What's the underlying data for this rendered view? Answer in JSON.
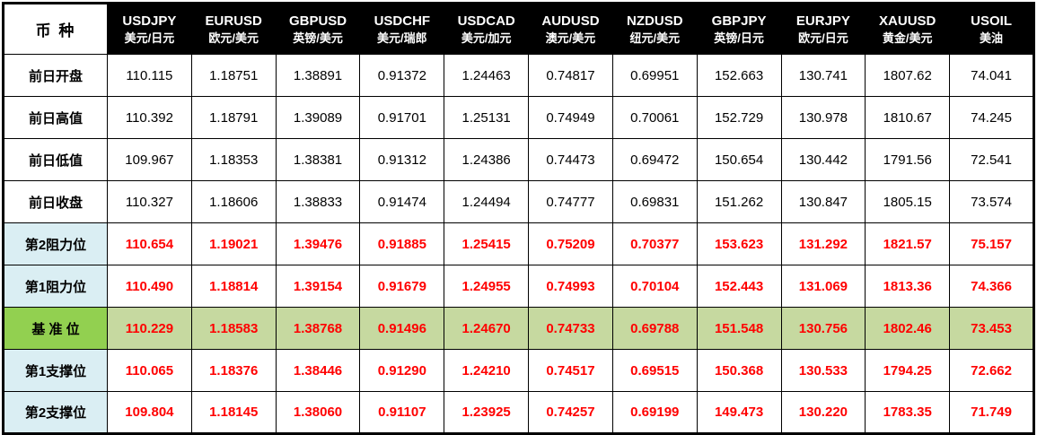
{
  "colors": {
    "header_bg": "#000000",
    "header_text": "#ffffff",
    "level_label_bg": "#daeef3",
    "pivot_label_bg": "#92d050",
    "pivot_row_bg": "#c6d9a0",
    "level_value_text": "#ff0000",
    "plain_value_text": "#000000",
    "border": "#000000"
  },
  "chart_data": {
    "type": "table",
    "corner_label": "币 种",
    "columns": [
      {
        "symbol": "USDJPY",
        "name": "美元/日元"
      },
      {
        "symbol": "EURUSD",
        "name": "欧元/美元"
      },
      {
        "symbol": "GBPUSD",
        "name": "英镑/美元"
      },
      {
        "symbol": "USDCHF",
        "name": "美元/瑞郎"
      },
      {
        "symbol": "USDCAD",
        "name": "美元/加元"
      },
      {
        "symbol": "AUDUSD",
        "name": "澳元/美元"
      },
      {
        "symbol": "NZDUSD",
        "name": "纽元/美元"
      },
      {
        "symbol": "GBPJPY",
        "name": "英镑/日元"
      },
      {
        "symbol": "EURJPY",
        "name": "欧元/日元"
      },
      {
        "symbol": "XAUUSD",
        "name": "黄金/美元"
      },
      {
        "symbol": "USOIL",
        "name": "美油"
      }
    ],
    "rows": [
      {
        "label": "前日开盘",
        "style": "plain",
        "values": [
          "110.115",
          "1.18751",
          "1.38891",
          "0.91372",
          "1.24463",
          "0.74817",
          "0.69951",
          "152.663",
          "130.741",
          "1807.62",
          "74.041"
        ]
      },
      {
        "label": "前日高值",
        "style": "plain",
        "values": [
          "110.392",
          "1.18791",
          "1.39089",
          "0.91701",
          "1.25131",
          "0.74949",
          "0.70061",
          "152.729",
          "130.978",
          "1810.67",
          "74.245"
        ]
      },
      {
        "label": "前日低值",
        "style": "plain",
        "values": [
          "109.967",
          "1.18353",
          "1.38381",
          "0.91312",
          "1.24386",
          "0.74473",
          "0.69472",
          "150.654",
          "130.442",
          "1791.56",
          "72.541"
        ]
      },
      {
        "label": "前日收盘",
        "style": "plain",
        "values": [
          "110.327",
          "1.18606",
          "1.38833",
          "0.91474",
          "1.24494",
          "0.74777",
          "0.69831",
          "151.262",
          "130.847",
          "1805.15",
          "73.574"
        ]
      },
      {
        "label": "第2阻力位",
        "style": "level",
        "values": [
          "110.654",
          "1.19021",
          "1.39476",
          "0.91885",
          "1.25415",
          "0.75209",
          "0.70377",
          "153.623",
          "131.292",
          "1821.57",
          "75.157"
        ]
      },
      {
        "label": "第1阻力位",
        "style": "level",
        "values": [
          "110.490",
          "1.18814",
          "1.39154",
          "0.91679",
          "1.24955",
          "0.74993",
          "0.70104",
          "152.443",
          "131.069",
          "1813.36",
          "74.366"
        ]
      },
      {
        "label": "基 准 位",
        "style": "pivot",
        "values": [
          "110.229",
          "1.18583",
          "1.38768",
          "0.91496",
          "1.24670",
          "0.74733",
          "0.69788",
          "151.548",
          "130.756",
          "1802.46",
          "73.453"
        ]
      },
      {
        "label": "第1支撑位",
        "style": "level",
        "values": [
          "110.065",
          "1.18376",
          "1.38446",
          "0.91290",
          "1.24210",
          "0.74517",
          "0.69515",
          "150.368",
          "130.533",
          "1794.25",
          "72.662"
        ]
      },
      {
        "label": "第2支撑位",
        "style": "level",
        "values": [
          "109.804",
          "1.18145",
          "1.38060",
          "0.91107",
          "1.23925",
          "0.74257",
          "0.69199",
          "149.473",
          "130.220",
          "1783.35",
          "71.749"
        ]
      }
    ]
  }
}
